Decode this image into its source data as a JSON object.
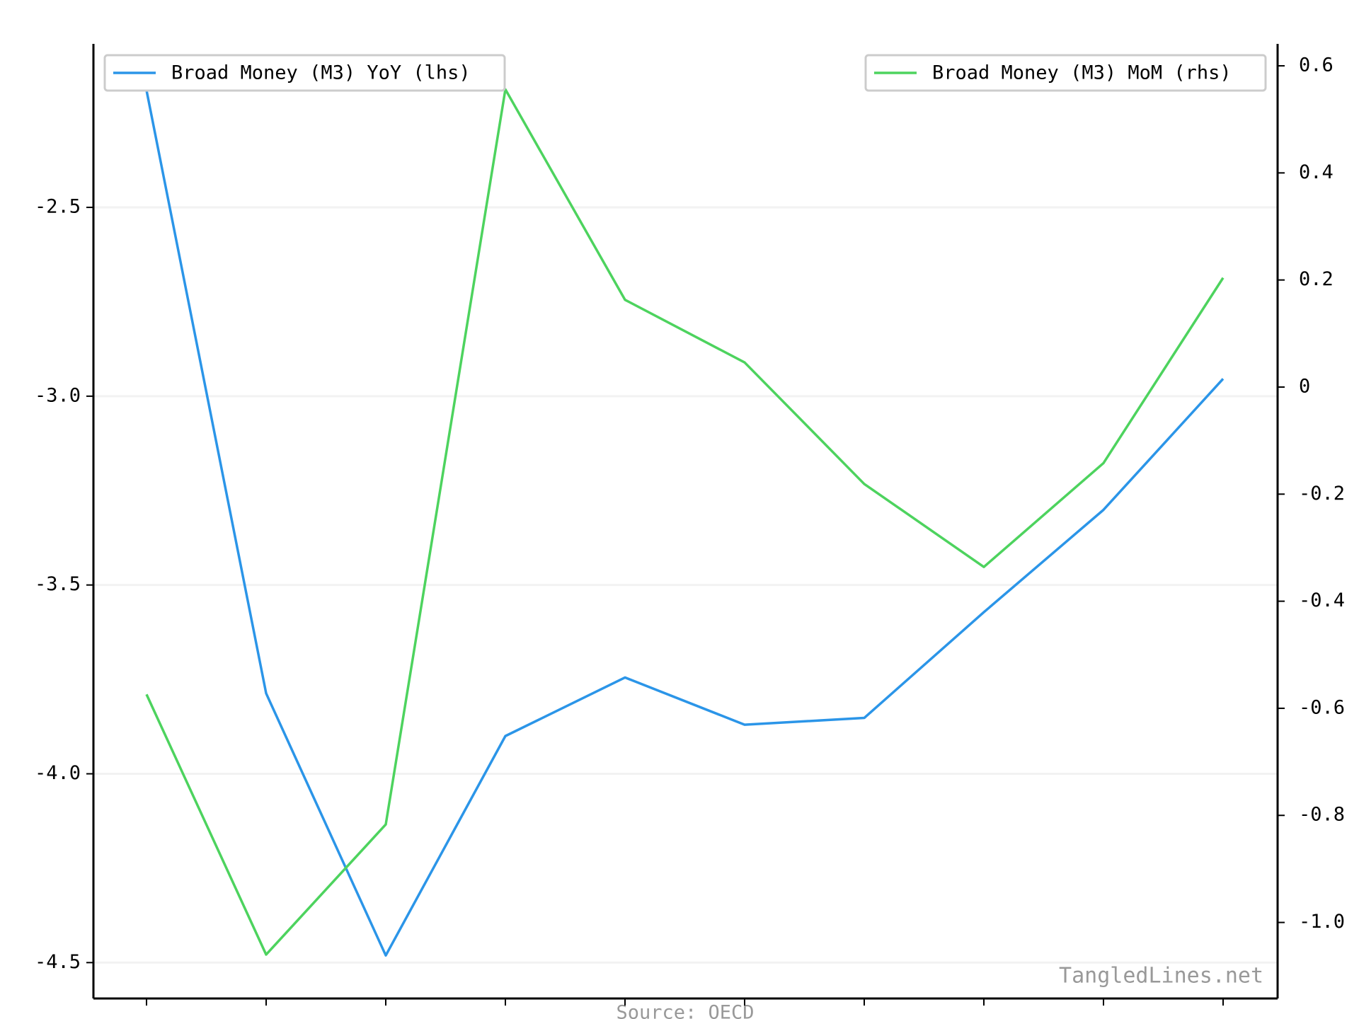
{
  "chart_data": {
    "type": "line",
    "categories": [
      null,
      null,
      null,
      null,
      null,
      null,
      null,
      null,
      null,
      null
    ],
    "series": [
      {
        "name": "Broad Money (M3) YoY (lhs)",
        "color": "#2b95e8",
        "axis": "y",
        "legend_loc": "upper left",
        "values": [
          -2.19,
          -3.787,
          -4.481,
          -3.9,
          -3.745,
          -3.87,
          -3.852,
          -3.572,
          -3.301,
          -2.954
        ]
      },
      {
        "name": "Broad Money (M3) MoM (rhs)",
        "color": "#4dd35e",
        "axis": "y2",
        "legend_loc": "upper right",
        "values": [
          -0.574,
          -1.06,
          -0.817,
          0.556,
          0.163,
          0.046,
          -0.181,
          -0.336,
          -0.142,
          0.204
        ]
      }
    ],
    "ylim": [
      -4.595,
      -2.067
    ],
    "yticks": [
      -2.5,
      {
        "value": -3,
        "label": "-3.0"
      },
      -3.5,
      {
        "value": -4,
        "label": "-4.0"
      },
      -4.5
    ],
    "y2lim": [
      -1.142,
      0.641
    ],
    "y2ticks": [
      0.6,
      0.4,
      0.2,
      0,
      -0.2,
      -0.4,
      -0.6,
      -0.8,
      {
        "value": -1,
        "label": "-1.0"
      }
    ],
    "grid": true,
    "source": "Source: OECD",
    "watermark": "TangledLines.net"
  }
}
